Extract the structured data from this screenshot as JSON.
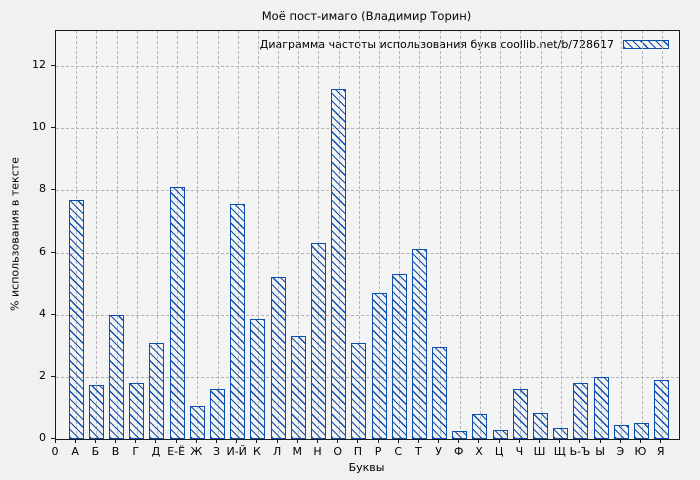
{
  "title": "Моё пост-имаго (Владимир Торин)",
  "legend": {
    "label": "Диаграмма частоты использования букв coollib.net/b/728617"
  },
  "axes": {
    "x_label": "Буквы",
    "y_label": "% использования в тексте"
  },
  "colors": {
    "bar_blue": "#0b4fae",
    "grid_gray": "#b3b3b3",
    "figure_bg": "#f1f1f1",
    "plot_bg": "#f4f4f4",
    "axis_text": "#000000"
  },
  "chart_data": {
    "type": "bar",
    "title": "Моё пост-имаго (Владимир Торин)",
    "series_name": "Диаграмма частоты использования букв coollib.net/b/728617",
    "xlabel": "Буквы",
    "ylabel": "% использования в тексте",
    "ylim": [
      0,
      13.13
    ],
    "y_ticks": [
      0,
      2,
      4,
      6,
      8,
      10,
      12
    ],
    "grid": true,
    "legend_position": "top-right",
    "hatch": "diagonal-backslash",
    "categories": [
      "0",
      "А",
      "Б",
      "В",
      "Г",
      "Д",
      "Е-Ё",
      "Ж",
      "З",
      "И-Й",
      "К",
      "Л",
      "М",
      "Н",
      "О",
      "П",
      "Р",
      "С",
      "Т",
      "У",
      "Ф",
      "Х",
      "Ц",
      "Ч",
      "Ш",
      "Щ",
      "Ь-Ъ",
      "Ы",
      "Э",
      "Ю",
      "Я"
    ],
    "values": [
      null,
      7.7,
      1.75,
      4.0,
      1.8,
      3.1,
      8.1,
      1.05,
      1.6,
      7.55,
      3.85,
      5.2,
      3.3,
      6.3,
      11.25,
      3.1,
      4.7,
      5.3,
      6.1,
      2.95,
      0.25,
      0.8,
      0.3,
      1.6,
      0.85,
      0.35,
      1.8,
      2.0,
      0.45,
      0.5,
      1.9
    ]
  }
}
